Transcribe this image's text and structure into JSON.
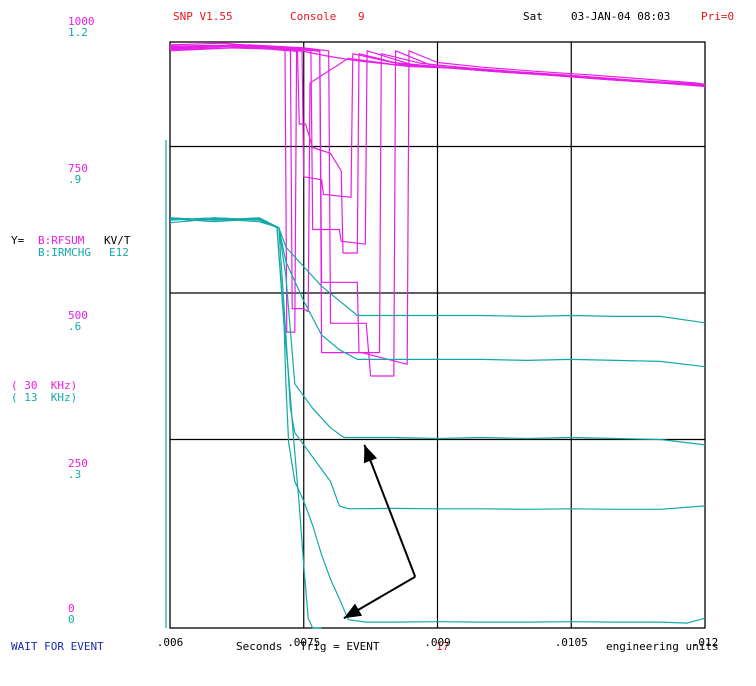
{
  "header": {
    "app": "SNP V1.55",
    "console_label": "Console",
    "console_number": "9",
    "day": "Sat",
    "datetime": "03-JAN-04 08:03",
    "priority": "Pri=0"
  },
  "footer": {
    "status": "WAIT FOR EVENT",
    "axis_unit": "Seconds",
    "trig_label": "Trig = EVENT",
    "trig_value": "17",
    "units_mode": "engineering units"
  },
  "legend": {
    "prefix": "Y=",
    "series1_name": "B:RFSUM",
    "series1_unit": "KV/T",
    "series2_name": "B:IRMCHG",
    "series2_unit": "E12",
    "series1_freq": "( 30  KHz)",
    "series2_freq": "( 13  KHz)"
  },
  "colors": {
    "series1": "#e61ee6",
    "series2": "#13a8a8",
    "header": "#e8141e",
    "status": "#1a2bb5"
  },
  "chart_data": {
    "type": "line",
    "xlim": [
      0.006,
      0.012
    ],
    "x_ticks": [
      ".006",
      ".0075",
      ".009",
      ".0105",
      ".012"
    ],
    "y1_ticks": [
      "1000",
      "750",
      "500",
      "250",
      "0"
    ],
    "y2_ticks": [
      "1.2",
      ".9",
      ".6",
      ".3",
      "0"
    ],
    "y1lim": [
      0,
      1000
    ],
    "y2lim": [
      0,
      1.2
    ],
    "grid": true,
    "series": [
      {
        "name": "B:RFSUM",
        "axis": "y1",
        "traces": [
          [
            [
              0.006,
              995
            ],
            [
              0.0066,
              998
            ],
            [
              0.0069,
              994
            ],
            [
              0.0072,
              990
            ],
            [
              0.00729,
              988
            ],
            [
              0.00731,
              505
            ],
            [
              0.0074,
              505
            ],
            [
              0.00742,
              985
            ],
            [
              0.0075,
              984
            ],
            [
              0.0078,
              975
            ],
            [
              0.0081,
              968
            ],
            [
              0.0084,
              963
            ],
            [
              0.0087,
              958
            ],
            [
              0.0093,
              955
            ],
            [
              0.0099,
              948
            ],
            [
              0.0105,
              942
            ],
            [
              0.0111,
              935
            ],
            [
              0.0117,
              929
            ],
            [
              0.012,
              925
            ]
          ],
          [
            [
              0.006,
              990
            ],
            [
              0.0066,
              994
            ],
            [
              0.007,
              990
            ],
            [
              0.00735,
              986
            ],
            [
              0.00737,
              545
            ],
            [
              0.0075,
              545
            ],
            [
              0.00755,
              540
            ],
            [
              0.00757,
              930
            ],
            [
              0.008,
              972
            ],
            [
              0.0085,
              962
            ],
            [
              0.009,
              957
            ],
            [
              0.0096,
              950
            ],
            [
              0.0102,
              944
            ],
            [
              0.0108,
              938
            ],
            [
              0.0114,
              932
            ],
            [
              0.012,
              928
            ]
          ],
          [
            [
              0.006,
              985
            ],
            [
              0.0067,
              990
            ],
            [
              0.0071,
              988
            ],
            [
              0.00743,
              984
            ],
            [
              0.00745,
              860
            ],
            [
              0.00752,
              860
            ],
            [
              0.0076,
              820
            ],
            [
              0.0078,
              810
            ],
            [
              0.00792,
              780
            ],
            [
              0.00794,
              640
            ],
            [
              0.0081,
              640
            ],
            [
              0.00812,
              980
            ],
            [
              0.0086,
              962
            ],
            [
              0.0091,
              956
            ],
            [
              0.0097,
              950
            ],
            [
              0.0103,
              943
            ],
            [
              0.0109,
              936
            ],
            [
              0.0115,
              930
            ],
            [
              0.012,
              925
            ]
          ],
          [
            [
              0.006,
              992
            ],
            [
              0.0068,
              995
            ],
            [
              0.0072,
              990
            ],
            [
              0.00748,
              985
            ],
            [
              0.0075,
              770
            ],
            [
              0.0077,
              765
            ],
            [
              0.00772,
              740
            ],
            [
              0.00803,
              735
            ],
            [
              0.00805,
              980
            ],
            [
              0.0085,
              965
            ],
            [
              0.009,
              958
            ],
            [
              0.0096,
              950
            ],
            [
              0.0102,
              944
            ],
            [
              0.0108,
              937
            ],
            [
              0.0114,
              931
            ],
            [
              0.012,
              927
            ]
          ],
          [
            [
              0.006,
              988
            ],
            [
              0.0067,
              993
            ],
            [
              0.0073,
              990
            ],
            [
              0.00758,
              985
            ],
            [
              0.0076,
              680
            ],
            [
              0.0079,
              680
            ],
            [
              0.00792,
              660
            ],
            [
              0.00819,
              655
            ],
            [
              0.00821,
              985
            ],
            [
              0.0087,
              962
            ],
            [
              0.0092,
              955
            ],
            [
              0.0098,
              948
            ],
            [
              0.0104,
              942
            ],
            [
              0.011,
              935
            ],
            [
              0.0116,
              929
            ],
            [
              0.012,
              924
            ]
          ],
          [
            [
              0.006,
              990
            ],
            [
              0.0068,
              994
            ],
            [
              0.0074,
              990
            ],
            [
              0.00768,
              985
            ],
            [
              0.0077,
              590
            ],
            [
              0.0081,
              590
            ],
            [
              0.00812,
              470
            ],
            [
              0.00835,
              470
            ],
            [
              0.00837,
              980
            ],
            [
              0.0088,
              964
            ],
            [
              0.0093,
              956
            ],
            [
              0.0099,
              949
            ],
            [
              0.0105,
              943
            ],
            [
              0.0111,
              936
            ],
            [
              0.0117,
              930
            ],
            [
              0.012,
              926
            ]
          ],
          [
            [
              0.006,
              993
            ],
            [
              0.0069,
              995
            ],
            [
              0.0075,
              990
            ],
            [
              0.00778,
              985
            ],
            [
              0.0078,
              520
            ],
            [
              0.0082,
              520
            ],
            [
              0.00825,
              430
            ],
            [
              0.00851,
              430
            ],
            [
              0.00853,
              985
            ],
            [
              0.0089,
              962
            ],
            [
              0.0094,
              955
            ],
            [
              0.01,
              948
            ],
            [
              0.0106,
              941
            ],
            [
              0.0112,
              934
            ],
            [
              0.0118,
              928
            ],
            [
              0.012,
              925
            ]
          ],
          [
            [
              0.006,
              987
            ],
            [
              0.0068,
              991
            ],
            [
              0.0074,
              989
            ],
            [
              0.00768,
              984
            ],
            [
              0.0077,
              470
            ],
            [
              0.0081,
              470
            ],
            [
              0.00815,
              470
            ],
            [
              0.00866,
              450
            ],
            [
              0.00868,
              985
            ],
            [
              0.009,
              965
            ],
            [
              0.0095,
              957
            ],
            [
              0.0101,
              950
            ],
            [
              0.0107,
              944
            ],
            [
              0.0113,
              937
            ],
            [
              0.0119,
              930
            ],
            [
              0.012,
              928
            ]
          ]
        ]
      },
      {
        "name": "B:IRMCHG",
        "axis": "y2",
        "traces": [
          [
            [
              0.006,
              0.835
            ],
            [
              0.0065,
              0.84
            ],
            [
              0.007,
              0.835
            ],
            [
              0.0072,
              0.82
            ],
            [
              0.00728,
              0.62
            ],
            [
              0.00733,
              0.52
            ],
            [
              0.00738,
              0.4
            ],
            [
              0.00745,
              0.25
            ],
            [
              0.0075,
              0.13
            ],
            [
              0.00755,
              0.02
            ],
            [
              0.0076,
              0.0
            ],
            [
              0.0077,
              0.0
            ]
          ],
          [
            [
              0.006,
              0.84
            ],
            [
              0.0065,
              0.835
            ],
            [
              0.007,
              0.838
            ],
            [
              0.0072,
              0.82
            ],
            [
              0.00728,
              0.62
            ],
            [
              0.0073,
              0.5
            ],
            [
              0.00733,
              0.38
            ],
            [
              0.0074,
              0.3
            ],
            [
              0.0075,
              0.26
            ],
            [
              0.0076,
              0.21
            ],
            [
              0.0077,
              0.15
            ],
            [
              0.0078,
              0.1
            ],
            [
              0.0079,
              0.06
            ],
            [
              0.008,
              0.017
            ],
            [
              0.0082,
              0.012
            ],
            [
              0.0085,
              0.012
            ],
            [
              0.009,
              0.013
            ],
            [
              0.0095,
              0.012
            ],
            [
              0.01,
              0.012
            ],
            [
              0.0105,
              0.013
            ],
            [
              0.011,
              0.012
            ],
            [
              0.0115,
              0.012
            ],
            [
              0.0118,
              0.01
            ],
            [
              0.012,
              0.02
            ]
          ],
          [
            [
              0.006,
              0.83
            ],
            [
              0.0065,
              0.838
            ],
            [
              0.007,
              0.832
            ],
            [
              0.00722,
              0.82
            ],
            [
              0.0073,
              0.6
            ],
            [
              0.00735,
              0.45
            ],
            [
              0.0074,
              0.4
            ],
            [
              0.0076,
              0.35
            ],
            [
              0.0078,
              0.3
            ],
            [
              0.0079,
              0.25
            ],
            [
              0.008,
              0.244
            ],
            [
              0.0085,
              0.245
            ],
            [
              0.009,
              0.244
            ],
            [
              0.0095,
              0.244
            ],
            [
              0.01,
              0.243
            ],
            [
              0.0105,
              0.244
            ],
            [
              0.011,
              0.243
            ],
            [
              0.0115,
              0.243
            ],
            [
              0.012,
              0.25
            ]
          ],
          [
            [
              0.006,
              0.838
            ],
            [
              0.0065,
              0.832
            ],
            [
              0.007,
              0.838
            ],
            [
              0.00722,
              0.82
            ],
            [
              0.0073,
              0.72
            ],
            [
              0.0074,
              0.5
            ],
            [
              0.0076,
              0.45
            ],
            [
              0.0078,
              0.41
            ],
            [
              0.00795,
              0.39
            ],
            [
              0.008,
              0.39
            ],
            [
              0.0085,
              0.39
            ],
            [
              0.009,
              0.388
            ],
            [
              0.0095,
              0.39
            ],
            [
              0.01,
              0.388
            ],
            [
              0.0105,
              0.39
            ],
            [
              0.011,
              0.388
            ],
            [
              0.0115,
              0.386
            ],
            [
              0.012,
              0.375
            ]
          ],
          [
            [
              0.006,
              0.84
            ],
            [
              0.0065,
              0.835
            ],
            [
              0.007,
              0.84
            ],
            [
              0.00722,
              0.82
            ],
            [
              0.0073,
              0.75
            ],
            [
              0.0075,
              0.67
            ],
            [
              0.0077,
              0.6
            ],
            [
              0.0079,
              0.57
            ],
            [
              0.0081,
              0.55
            ],
            [
              0.0085,
              0.55
            ],
            [
              0.009,
              0.55
            ],
            [
              0.0095,
              0.55
            ],
            [
              0.01,
              0.548
            ],
            [
              0.0105,
              0.55
            ],
            [
              0.011,
              0.548
            ],
            [
              0.0115,
              0.546
            ],
            [
              0.012,
              0.535
            ]
          ],
          [
            [
              0.006,
              0.836
            ],
            [
              0.0065,
              0.84
            ],
            [
              0.007,
              0.836
            ],
            [
              0.00722,
              0.82
            ],
            [
              0.0073,
              0.78
            ],
            [
              0.0075,
              0.74
            ],
            [
              0.0077,
              0.7
            ],
            [
              0.0079,
              0.67
            ],
            [
              0.0081,
              0.64
            ],
            [
              0.0085,
              0.64
            ],
            [
              0.009,
              0.64
            ],
            [
              0.0095,
              0.64
            ],
            [
              0.01,
              0.638
            ],
            [
              0.0105,
              0.64
            ],
            [
              0.011,
              0.638
            ],
            [
              0.0115,
              0.638
            ],
            [
              0.012,
              0.625
            ]
          ]
        ]
      }
    ],
    "annotations": [
      {
        "type": "arrow",
        "from": [
          0.00875,
          0.105
        ],
        "to": [
          0.00818,
          0.375
        ]
      },
      {
        "type": "arrow",
        "from": [
          0.00875,
          0.105
        ],
        "to": [
          0.00795,
          0.02
        ]
      }
    ]
  }
}
